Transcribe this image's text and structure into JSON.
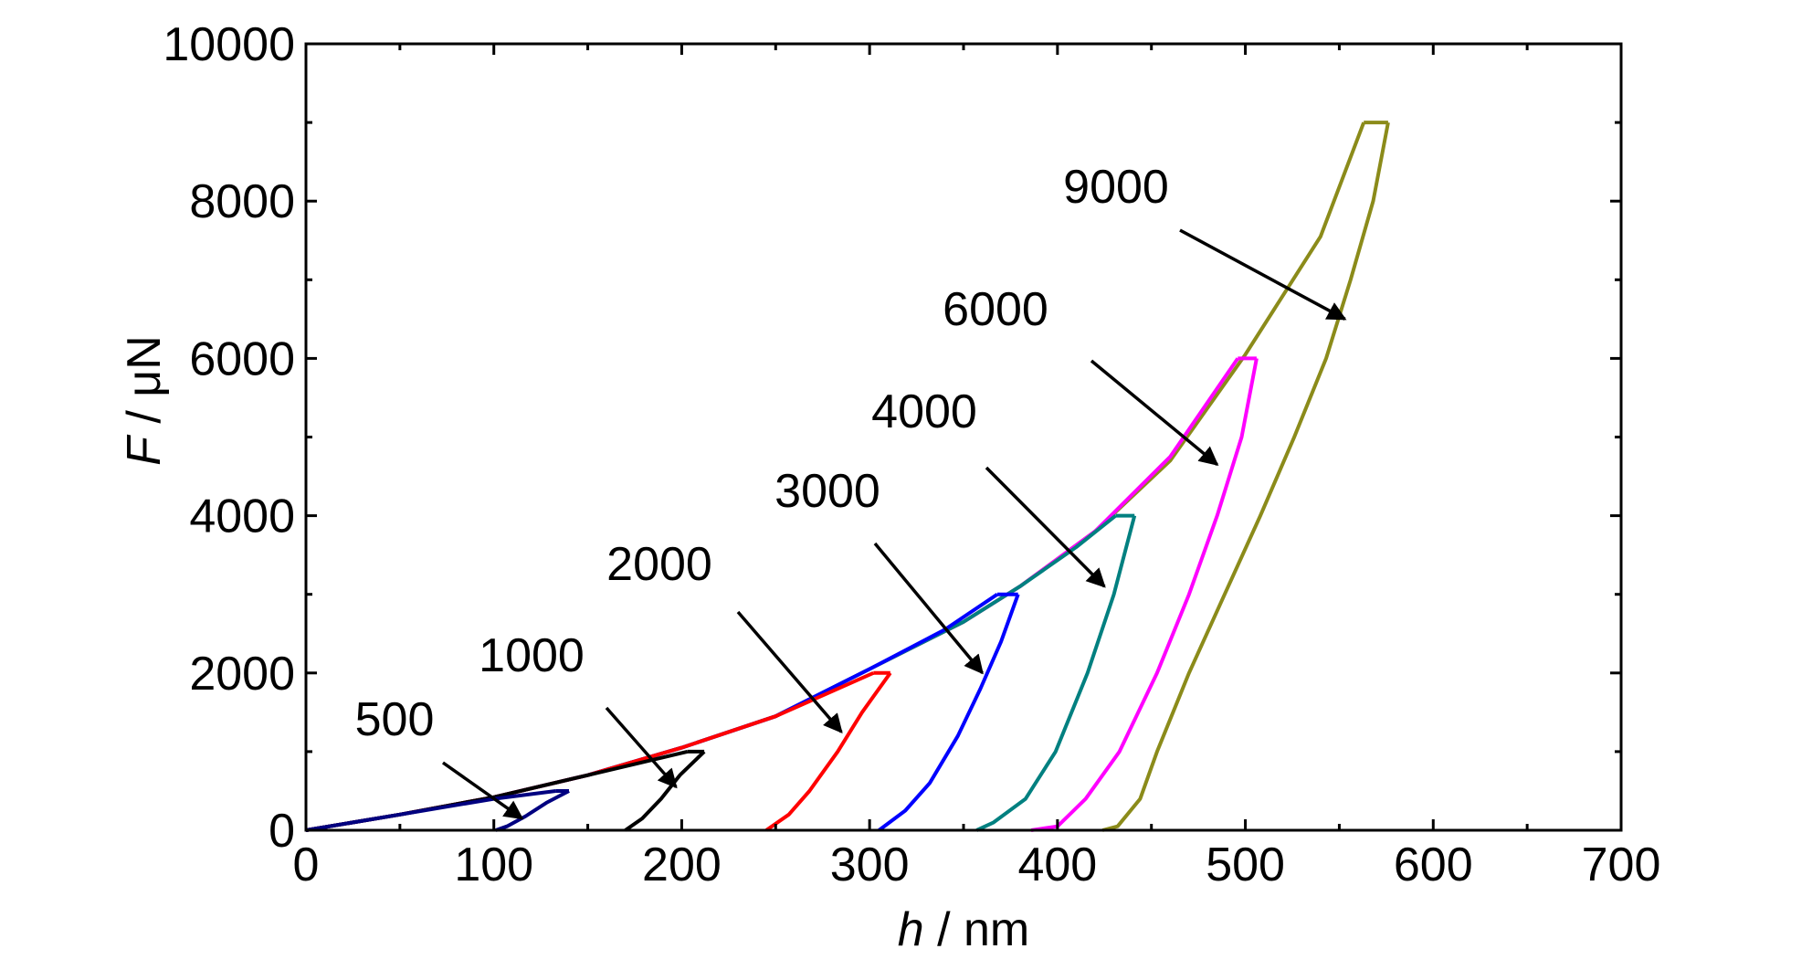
{
  "chart_data": {
    "type": "line",
    "title": "",
    "xlabel": {
      "symbol": "h",
      "unit": " / nm"
    },
    "ylabel": {
      "symbol": "F",
      "unit": " / μN"
    },
    "xlim": [
      0,
      700
    ],
    "ylim": [
      0,
      10000
    ],
    "x_ticks": [
      0,
      100,
      200,
      300,
      400,
      500,
      600,
      700
    ],
    "x_tick_labels": [
      "0",
      "100",
      "200",
      "300",
      "400",
      "500",
      "600",
      "700"
    ],
    "y_ticks": [
      0,
      2000,
      4000,
      6000,
      8000,
      10000
    ],
    "y_tick_labels": [
      "0",
      "2000",
      "4000",
      "6000",
      "8000",
      "10000"
    ],
    "grid": false,
    "legend": "none",
    "series": [
      {
        "color": "#8b8b1a",
        "loading": [
          [
            0,
            0
          ],
          [
            50,
            200
          ],
          [
            100,
            420
          ],
          [
            150,
            700
          ],
          [
            200,
            1050
          ],
          [
            250,
            1450
          ],
          [
            300,
            2050
          ],
          [
            350,
            2650
          ],
          [
            380,
            3100
          ],
          [
            420,
            3800
          ],
          [
            460,
            4700
          ],
          [
            500,
            6050
          ],
          [
            540,
            7550
          ],
          [
            563,
            9000
          ]
        ],
        "hold": [
          [
            563,
            9000
          ],
          [
            576,
            9000
          ]
        ],
        "unloading": [
          [
            576,
            9000
          ],
          [
            568,
            8000
          ],
          [
            556,
            7000
          ],
          [
            543,
            6000
          ],
          [
            526,
            5000
          ],
          [
            508,
            4000
          ],
          [
            489,
            3000
          ],
          [
            470,
            2000
          ],
          [
            453,
            1000
          ],
          [
            444,
            400
          ],
          [
            432,
            50
          ],
          [
            424,
            0
          ]
        ]
      },
      {
        "color": "#ff00ff",
        "loading": [
          [
            0,
            0
          ],
          [
            50,
            200
          ],
          [
            100,
            420
          ],
          [
            150,
            700
          ],
          [
            200,
            1050
          ],
          [
            250,
            1450
          ],
          [
            300,
            2050
          ],
          [
            350,
            2650
          ],
          [
            380,
            3100
          ],
          [
            420,
            3800
          ],
          [
            460,
            4750
          ],
          [
            496,
            6000
          ]
        ],
        "hold": [
          [
            496,
            6000
          ],
          [
            506,
            6000
          ]
        ],
        "unloading": [
          [
            506,
            6000
          ],
          [
            498,
            5000
          ],
          [
            485,
            4000
          ],
          [
            470,
            3000
          ],
          [
            453,
            2000
          ],
          [
            433,
            1000
          ],
          [
            415,
            400
          ],
          [
            400,
            50
          ],
          [
            386,
            0
          ]
        ]
      },
      {
        "color": "#008080",
        "loading": [
          [
            0,
            0
          ],
          [
            50,
            200
          ],
          [
            100,
            420
          ],
          [
            150,
            700
          ],
          [
            200,
            1050
          ],
          [
            250,
            1450
          ],
          [
            300,
            2050
          ],
          [
            350,
            2650
          ],
          [
            380,
            3100
          ],
          [
            410,
            3600
          ],
          [
            431,
            4000
          ]
        ],
        "hold": [
          [
            431,
            4000
          ],
          [
            441,
            4000
          ]
        ],
        "unloading": [
          [
            441,
            4000
          ],
          [
            430,
            3000
          ],
          [
            416,
            2000
          ],
          [
            399,
            1000
          ],
          [
            383,
            400
          ],
          [
            366,
            100
          ],
          [
            357,
            0
          ]
        ]
      },
      {
        "color": "#0000ff",
        "loading": [
          [
            0,
            0
          ],
          [
            50,
            200
          ],
          [
            100,
            420
          ],
          [
            150,
            700
          ],
          [
            200,
            1050
          ],
          [
            250,
            1450
          ],
          [
            300,
            2050
          ],
          [
            340,
            2550
          ],
          [
            368,
            3000
          ]
        ],
        "hold": [
          [
            368,
            3000
          ],
          [
            379,
            3000
          ]
        ],
        "unloading": [
          [
            379,
            3000
          ],
          [
            370,
            2400
          ],
          [
            359,
            1800
          ],
          [
            347,
            1200
          ],
          [
            332,
            600
          ],
          [
            319,
            250
          ],
          [
            305,
            0
          ]
        ]
      },
      {
        "color": "#ff0000",
        "loading": [
          [
            0,
            0
          ],
          [
            50,
            200
          ],
          [
            100,
            420
          ],
          [
            150,
            700
          ],
          [
            200,
            1050
          ],
          [
            250,
            1450
          ],
          [
            302,
            2000
          ]
        ],
        "hold": [
          [
            302,
            2000
          ],
          [
            311,
            2000
          ]
        ],
        "unloading": [
          [
            311,
            2000
          ],
          [
            296,
            1500
          ],
          [
            283,
            1000
          ],
          [
            268,
            500
          ],
          [
            257,
            200
          ],
          [
            245,
            0
          ]
        ]
      },
      {
        "color": "#000000",
        "loading": [
          [
            0,
            0
          ],
          [
            50,
            200
          ],
          [
            100,
            420
          ],
          [
            150,
            700
          ],
          [
            203,
            1000
          ]
        ],
        "hold": [
          [
            203,
            1000
          ],
          [
            212,
            1000
          ]
        ],
        "unloading": [
          [
            212,
            1000
          ],
          [
            199,
            700
          ],
          [
            189,
            400
          ],
          [
            179,
            150
          ],
          [
            170,
            0
          ]
        ]
      },
      {
        "color": "#000080",
        "loading": [
          [
            0,
            0
          ],
          [
            50,
            200
          ],
          [
            100,
            400
          ],
          [
            133,
            500
          ]
        ],
        "hold": [
          [
            133,
            500
          ],
          [
            140,
            500
          ]
        ],
        "unloading": [
          [
            140,
            500
          ],
          [
            128,
            350
          ],
          [
            117,
            180
          ],
          [
            107,
            50
          ],
          [
            101,
            0
          ]
        ]
      }
    ],
    "annotations": [
      {
        "text": "9000",
        "target": [
          553,
          6500
        ]
      },
      {
        "text": "6000",
        "target": [
          485,
          4650
        ]
      },
      {
        "text": "4000",
        "target": [
          425,
          3100
        ]
      },
      {
        "text": "3000",
        "target": [
          360,
          2000
        ]
      },
      {
        "text": "2000",
        "target": [
          285,
          1250
        ]
      },
      {
        "text": "1000",
        "target": [
          197,
          550
        ]
      },
      {
        "text": "500",
        "target": [
          115,
          150
        ]
      }
    ]
  }
}
